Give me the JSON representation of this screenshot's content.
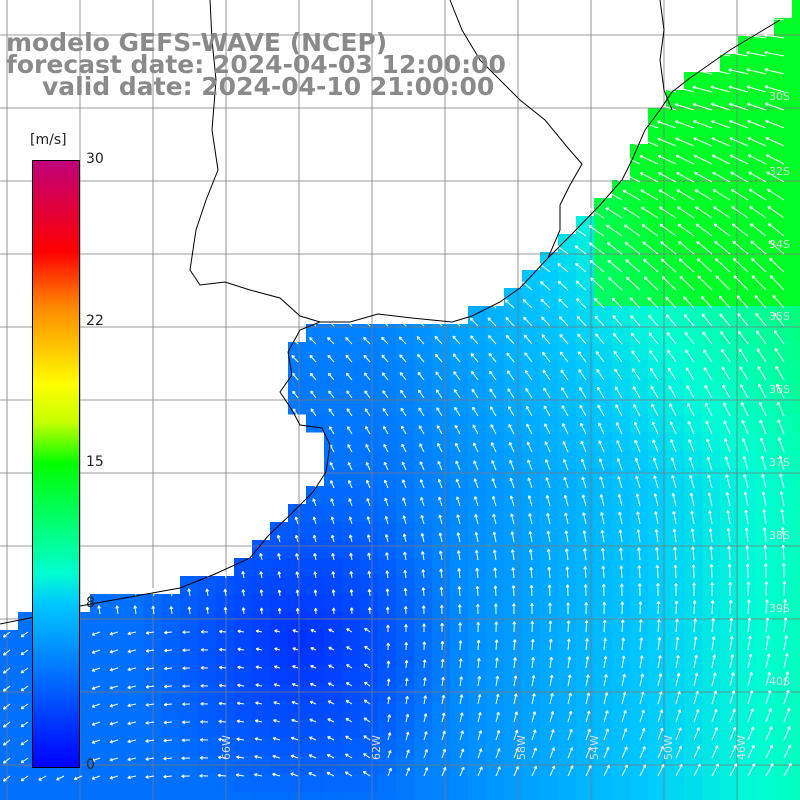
{
  "title": {
    "model": "modelo GEFS-WAVE (NCEP)",
    "forecast": "forecast date: 2024-04-03 12:00:00",
    "valid": "valid date: 2024-04-10 21:00:00"
  },
  "legend": {
    "unit": "[m/s]",
    "ticks": [
      "30",
      "22",
      "15",
      "8",
      "0"
    ],
    "tick_values": [
      30,
      22,
      15,
      8,
      0
    ],
    "min": 0,
    "max": 30,
    "colors": [
      "#0000ff",
      "#00c8ff",
      "#00ffd0",
      "#00ff00",
      "#ffff00",
      "#ff8800",
      "#ff0000",
      "#c0007a"
    ]
  },
  "map": {
    "variable": "wind speed and direction",
    "land_color": "#ffffff",
    "coast_color": "#000000",
    "grid_color": "#7a7a7a",
    "lat_labels": [
      "30S",
      "32S",
      "34S",
      "35S",
      "36S",
      "37S",
      "38S",
      "39S",
      "40S"
    ],
    "lon_labels": [
      "66W",
      "62W",
      "58W",
      "54W",
      "50W",
      "46W"
    ]
  }
}
